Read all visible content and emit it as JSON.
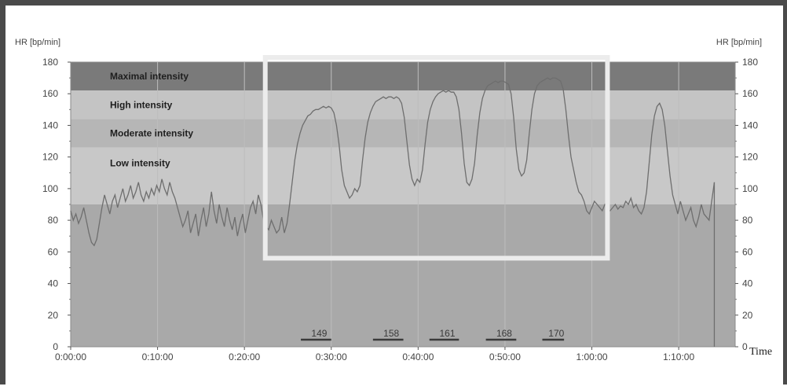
{
  "chart_data": {
    "type": "line",
    "ylabel_left": "HR [bp/min]",
    "ylabel_right": "HR [bp/min]",
    "xlabel": "Time",
    "ylim": [
      0,
      180
    ],
    "xlim_minutes": [
      0,
      76.5
    ],
    "y_ticks": [
      0,
      20,
      40,
      60,
      80,
      100,
      120,
      140,
      160,
      180
    ],
    "x_ticks": [
      {
        "minute": 0,
        "label": "0:00:00"
      },
      {
        "minute": 10,
        "label": "0:10:00"
      },
      {
        "minute": 20,
        "label": "0:20:00"
      },
      {
        "minute": 30,
        "label": "0:30:00"
      },
      {
        "minute": 40,
        "label": "0:40:00"
      },
      {
        "minute": 50,
        "label": "0:50:00"
      },
      {
        "minute": 60,
        "label": "1:00:00"
      },
      {
        "minute": 70,
        "label": "1:10:00"
      }
    ],
    "zones": [
      {
        "label": "Maximal intensity",
        "from": 162,
        "to": 180,
        "color": "#7a7a7a"
      },
      {
        "label": "High intensity",
        "from": 144,
        "to": 162,
        "color": "#c4c4c4"
      },
      {
        "label": "Moderate intensity",
        "from": 126,
        "to": 144,
        "color": "#b6b6b6"
      },
      {
        "label": "Low intensity",
        "from": 90,
        "to": 126,
        "color": "#c8c8c8"
      }
    ],
    "below_zone_color": "#a9a9a9",
    "interval_markers": [
      {
        "label": "149",
        "x_start": 26.5,
        "x_end": 30.0
      },
      {
        "label": "158",
        "x_start": 34.8,
        "x_end": 38.3
      },
      {
        "label": "161",
        "x_start": 41.3,
        "x_end": 44.7
      },
      {
        "label": "168",
        "x_start": 47.8,
        "x_end": 51.3
      },
      {
        "label": "170",
        "x_start": 54.3,
        "x_end": 56.8
      }
    ],
    "highlight_box": {
      "x_start": 22.4,
      "x_end": 61.8,
      "y_start": 56,
      "y_end": 180
    },
    "series": [
      {
        "values": [
          [
            0.0,
            86
          ],
          [
            0.3,
            80
          ],
          [
            0.6,
            84
          ],
          [
            0.9,
            78
          ],
          [
            1.2,
            82
          ],
          [
            1.5,
            88
          ],
          [
            1.8,
            80
          ],
          [
            2.1,
            72
          ],
          [
            2.4,
            66
          ],
          [
            2.7,
            64
          ],
          [
            3.0,
            68
          ],
          [
            3.3,
            78
          ],
          [
            3.6,
            88
          ],
          [
            3.9,
            96
          ],
          [
            4.2,
            90
          ],
          [
            4.5,
            84
          ],
          [
            4.8,
            92
          ],
          [
            5.1,
            96
          ],
          [
            5.4,
            88
          ],
          [
            5.7,
            94
          ],
          [
            6.0,
            100
          ],
          [
            6.3,
            92
          ],
          [
            6.6,
            96
          ],
          [
            6.9,
            102
          ],
          [
            7.2,
            94
          ],
          [
            7.5,
            98
          ],
          [
            7.8,
            104
          ],
          [
            8.1,
            96
          ],
          [
            8.4,
            92
          ],
          [
            8.7,
            98
          ],
          [
            9.0,
            94
          ],
          [
            9.3,
            100
          ],
          [
            9.6,
            96
          ],
          [
            9.9,
            102
          ],
          [
            10.2,
            98
          ],
          [
            10.5,
            106
          ],
          [
            10.8,
            100
          ],
          [
            11.1,
            96
          ],
          [
            11.4,
            104
          ],
          [
            11.7,
            98
          ],
          [
            12.0,
            94
          ],
          [
            12.3,
            88
          ],
          [
            12.6,
            82
          ],
          [
            12.9,
            76
          ],
          [
            13.2,
            80
          ],
          [
            13.5,
            86
          ],
          [
            13.8,
            72
          ],
          [
            14.1,
            78
          ],
          [
            14.4,
            84
          ],
          [
            14.7,
            70
          ],
          [
            15.0,
            80
          ],
          [
            15.3,
            88
          ],
          [
            15.6,
            76
          ],
          [
            15.9,
            84
          ],
          [
            16.2,
            98
          ],
          [
            16.5,
            86
          ],
          [
            16.8,
            78
          ],
          [
            17.1,
            90
          ],
          [
            17.4,
            82
          ],
          [
            17.7,
            76
          ],
          [
            18.0,
            88
          ],
          [
            18.3,
            80
          ],
          [
            18.6,
            74
          ],
          [
            18.9,
            82
          ],
          [
            19.2,
            70
          ],
          [
            19.5,
            78
          ],
          [
            19.8,
            84
          ],
          [
            20.1,
            72
          ],
          [
            20.4,
            80
          ],
          [
            20.7,
            88
          ],
          [
            21.0,
            92
          ],
          [
            21.3,
            84
          ],
          [
            21.6,
            96
          ],
          [
            21.9,
            90
          ],
          [
            22.2,
            80
          ],
          [
            22.5,
            76
          ],
          [
            22.8,
            74
          ],
          [
            23.1,
            80
          ],
          [
            23.4,
            76
          ],
          [
            23.7,
            72
          ],
          [
            24.0,
            74
          ],
          [
            24.3,
            82
          ],
          [
            24.6,
            72
          ],
          [
            24.9,
            78
          ],
          [
            25.2,
            90
          ],
          [
            25.5,
            104
          ],
          [
            25.8,
            118
          ],
          [
            26.1,
            128
          ],
          [
            26.4,
            135
          ],
          [
            26.7,
            140
          ],
          [
            27.0,
            143
          ],
          [
            27.3,
            146
          ],
          [
            27.6,
            147
          ],
          [
            27.9,
            149
          ],
          [
            28.2,
            150
          ],
          [
            28.5,
            150
          ],
          [
            28.8,
            151
          ],
          [
            29.1,
            152
          ],
          [
            29.4,
            151
          ],
          [
            29.7,
            152
          ],
          [
            30.0,
            151
          ],
          [
            30.3,
            148
          ],
          [
            30.6,
            140
          ],
          [
            30.9,
            128
          ],
          [
            31.2,
            112
          ],
          [
            31.5,
            102
          ],
          [
            31.8,
            98
          ],
          [
            32.1,
            94
          ],
          [
            32.4,
            96
          ],
          [
            32.7,
            100
          ],
          [
            33.0,
            98
          ],
          [
            33.3,
            102
          ],
          [
            33.6,
            118
          ],
          [
            33.9,
            132
          ],
          [
            34.2,
            142
          ],
          [
            34.5,
            148
          ],
          [
            34.8,
            152
          ],
          [
            35.1,
            155
          ],
          [
            35.4,
            156
          ],
          [
            35.7,
            157
          ],
          [
            36.0,
            158
          ],
          [
            36.3,
            157
          ],
          [
            36.6,
            158
          ],
          [
            36.9,
            158
          ],
          [
            37.2,
            157
          ],
          [
            37.5,
            158
          ],
          [
            37.8,
            157
          ],
          [
            38.1,
            154
          ],
          [
            38.4,
            145
          ],
          [
            38.7,
            130
          ],
          [
            39.0,
            115
          ],
          [
            39.3,
            106
          ],
          [
            39.6,
            102
          ],
          [
            39.9,
            106
          ],
          [
            40.2,
            104
          ],
          [
            40.5,
            112
          ],
          [
            40.8,
            128
          ],
          [
            41.1,
            142
          ],
          [
            41.4,
            150
          ],
          [
            41.7,
            155
          ],
          [
            42.0,
            158
          ],
          [
            42.3,
            160
          ],
          [
            42.6,
            161
          ],
          [
            42.9,
            162
          ],
          [
            43.2,
            161
          ],
          [
            43.5,
            162
          ],
          [
            43.8,
            161
          ],
          [
            44.1,
            161
          ],
          [
            44.4,
            158
          ],
          [
            44.7,
            150
          ],
          [
            45.0,
            135
          ],
          [
            45.3,
            116
          ],
          [
            45.6,
            104
          ],
          [
            45.9,
            102
          ],
          [
            46.2,
            106
          ],
          [
            46.5,
            116
          ],
          [
            46.8,
            134
          ],
          [
            47.1,
            148
          ],
          [
            47.4,
            157
          ],
          [
            47.7,
            162
          ],
          [
            48.0,
            165
          ],
          [
            48.3,
            166
          ],
          [
            48.6,
            167
          ],
          [
            48.9,
            168
          ],
          [
            49.2,
            167
          ],
          [
            49.5,
            168
          ],
          [
            49.8,
            168
          ],
          [
            50.1,
            167
          ],
          [
            50.4,
            166
          ],
          [
            50.7,
            160
          ],
          [
            51.0,
            145
          ],
          [
            51.3,
            125
          ],
          [
            51.6,
            112
          ],
          [
            51.9,
            108
          ],
          [
            52.2,
            110
          ],
          [
            52.5,
            118
          ],
          [
            52.8,
            135
          ],
          [
            53.1,
            150
          ],
          [
            53.4,
            160
          ],
          [
            53.7,
            165
          ],
          [
            54.0,
            167
          ],
          [
            54.3,
            168
          ],
          [
            54.6,
            169
          ],
          [
            54.9,
            170
          ],
          [
            55.2,
            169
          ],
          [
            55.5,
            170
          ],
          [
            55.8,
            170
          ],
          [
            56.1,
            169
          ],
          [
            56.4,
            168
          ],
          [
            56.7,
            163
          ],
          [
            57.0,
            150
          ],
          [
            57.3,
            134
          ],
          [
            57.6,
            120
          ],
          [
            57.9,
            112
          ],
          [
            58.2,
            104
          ],
          [
            58.5,
            98
          ],
          [
            58.8,
            96
          ],
          [
            59.1,
            92
          ],
          [
            59.4,
            86
          ],
          [
            59.7,
            84
          ],
          [
            60.0,
            88
          ],
          [
            60.3,
            92
          ],
          [
            60.6,
            90
          ],
          [
            60.9,
            88
          ],
          [
            61.2,
            86
          ],
          [
            61.5,
            90
          ],
          [
            61.8,
            88
          ],
          [
            62.1,
            86
          ],
          [
            62.4,
            88
          ],
          [
            62.7,
            90
          ],
          [
            63.0,
            87
          ],
          [
            63.3,
            89
          ],
          [
            63.6,
            88
          ],
          [
            63.9,
            92
          ],
          [
            64.2,
            90
          ],
          [
            64.5,
            94
          ],
          [
            64.8,
            88
          ],
          [
            65.1,
            90
          ],
          [
            65.4,
            86
          ],
          [
            65.7,
            84
          ],
          [
            66.0,
            88
          ],
          [
            66.3,
            98
          ],
          [
            66.6,
            116
          ],
          [
            66.9,
            134
          ],
          [
            67.2,
            146
          ],
          [
            67.5,
            152
          ],
          [
            67.8,
            154
          ],
          [
            68.1,
            150
          ],
          [
            68.4,
            140
          ],
          [
            68.7,
            124
          ],
          [
            69.0,
            108
          ],
          [
            69.3,
            96
          ],
          [
            69.6,
            90
          ],
          [
            69.9,
            84
          ],
          [
            70.2,
            92
          ],
          [
            70.5,
            86
          ],
          [
            70.8,
            80
          ],
          [
            71.1,
            84
          ],
          [
            71.4,
            88
          ],
          [
            71.7,
            80
          ],
          [
            72.0,
            76
          ],
          [
            72.3,
            82
          ],
          [
            72.6,
            90
          ],
          [
            72.9,
            84
          ],
          [
            73.2,
            82
          ],
          [
            73.5,
            80
          ],
          [
            73.8,
            92
          ],
          [
            74.1,
            104
          ]
        ]
      }
    ]
  }
}
